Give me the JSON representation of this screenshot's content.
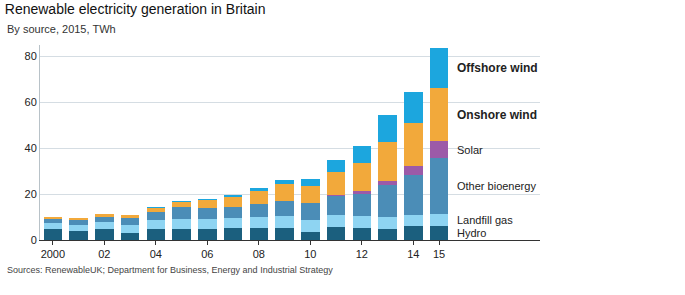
{
  "chart_data": {
    "type": "bar",
    "title": "Renewable electricity generation in Britain",
    "subtitle": "By source, 2015, TWh",
    "source": "Sources: RenewableUK; Department for Business, Energy and Industrial Strategy",
    "categories": [
      "2000",
      null,
      "02",
      null,
      "04",
      null,
      "06",
      null,
      "08",
      null,
      "10",
      null,
      "12",
      null,
      "14",
      "15"
    ],
    "series": [
      {
        "name": "Hydro",
        "color": "#1b5f7e",
        "values": [
          5.0,
          4.0,
          4.8,
          3.2,
          4.8,
          4.9,
          4.6,
          5.1,
          5.2,
          5.3,
          3.6,
          5.7,
          5.3,
          4.7,
          5.9,
          6.3
        ]
      },
      {
        "name": "Landfill gas",
        "color": "#8ed4f2",
        "values": [
          2.2,
          2.5,
          2.9,
          3.3,
          4.0,
          4.3,
          4.4,
          4.7,
          4.8,
          5.0,
          5.0,
          5.0,
          5.2,
          5.2,
          5.0,
          4.9
        ]
      },
      {
        "name": "Other bioenergy",
        "color": "#4b8db7",
        "values": [
          2.0,
          2.3,
          2.5,
          3.0,
          3.6,
          5.0,
          4.8,
          4.5,
          5.5,
          6.5,
          7.5,
          8.5,
          9.5,
          14.0,
          17.5,
          24.5
        ]
      },
      {
        "name": "Solar",
        "color": "#9c5aa8",
        "values": [
          0,
          0,
          0,
          0,
          0,
          0,
          0,
          0,
          0,
          0,
          0.04,
          0.25,
          1.4,
          2.0,
          4.0,
          7.5
        ]
      },
      {
        "name": "Onshore wind",
        "color": "#f2a93b",
        "values": [
          0.9,
          1.0,
          1.2,
          1.3,
          1.7,
          2.5,
          3.5,
          4.5,
          5.8,
          7.5,
          7.2,
          10.4,
          12.1,
          16.9,
          18.6,
          23.0
        ]
      },
      {
        "name": "Offshore wind",
        "color": "#1ca6de",
        "values": [
          0,
          0,
          0,
          0,
          0.2,
          0.4,
          0.6,
          0.8,
          1.3,
          1.7,
          3.1,
          5.1,
          7.6,
          11.5,
          13.4,
          17.4
        ]
      }
    ],
    "ylim": [
      0,
      85
    ],
    "yticks": [
      0,
      20,
      40,
      60,
      80
    ],
    "stacked": true,
    "grid": true
  }
}
